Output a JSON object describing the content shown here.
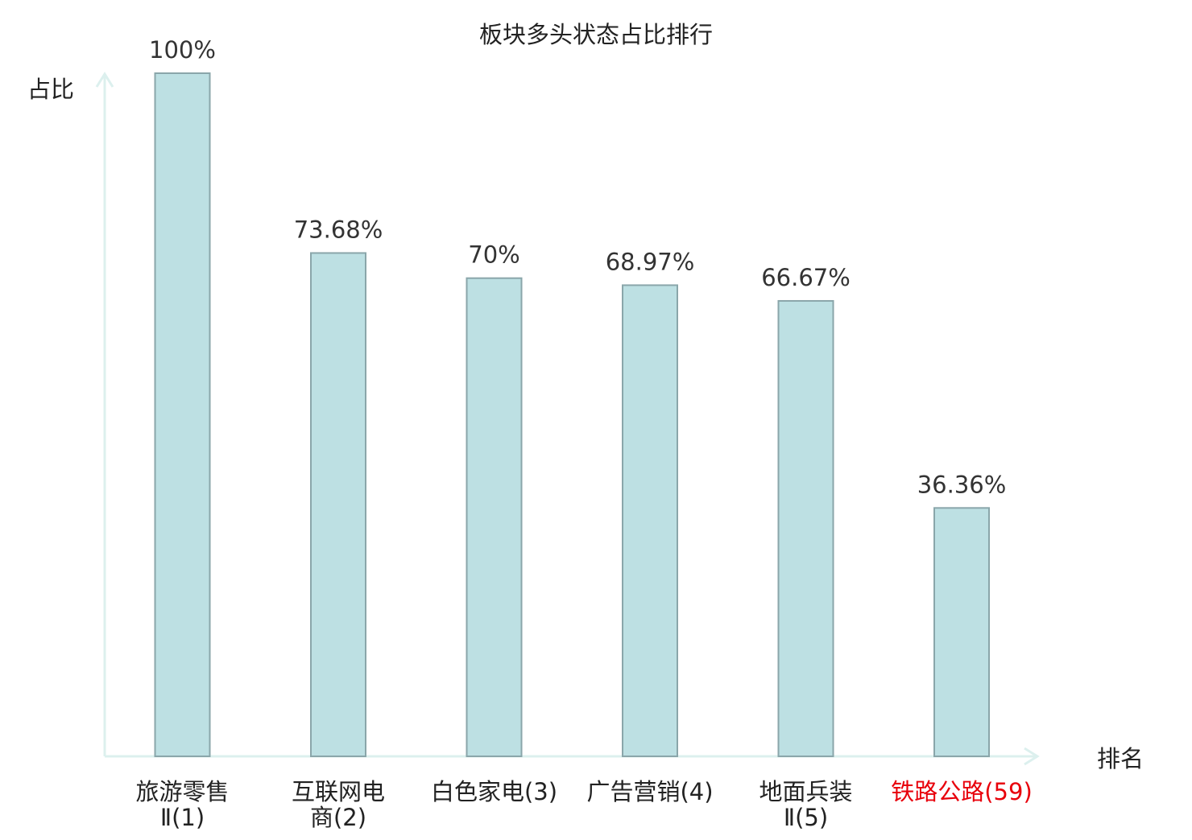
{
  "chart_data": {
    "type": "bar",
    "title": "板块多头状态占比排行",
    "ylabel": "占比",
    "xlabel": "排名",
    "ylim": [
      0,
      100
    ],
    "grid": false,
    "legend": "none",
    "categories": [
      {
        "lines": [
          "旅游零售",
          "Ⅱ(1)"
        ],
        "highlight": false
      },
      {
        "lines": [
          "互联网电",
          "商(2)"
        ],
        "highlight": false
      },
      {
        "lines": [
          "白色家电(3)"
        ],
        "highlight": false
      },
      {
        "lines": [
          "广告营销(4)"
        ],
        "highlight": false
      },
      {
        "lines": [
          "地面兵装",
          "Ⅱ(5)"
        ],
        "highlight": false
      },
      {
        "lines": [
          "铁路公路(59)"
        ],
        "highlight": true
      }
    ],
    "values": [
      100,
      73.68,
      70,
      68.97,
      66.67,
      36.36
    ],
    "value_labels": [
      "100%",
      "73.68%",
      "70%",
      "68.97%",
      "66.67%",
      "36.36%"
    ],
    "colors": {
      "bar_fill": "#bde0e3",
      "bar_stroke": "#8aa6aa",
      "axis": "#dcf0ee",
      "text": "#222222",
      "value_label": "#333333",
      "highlight": "#e8000b"
    }
  }
}
